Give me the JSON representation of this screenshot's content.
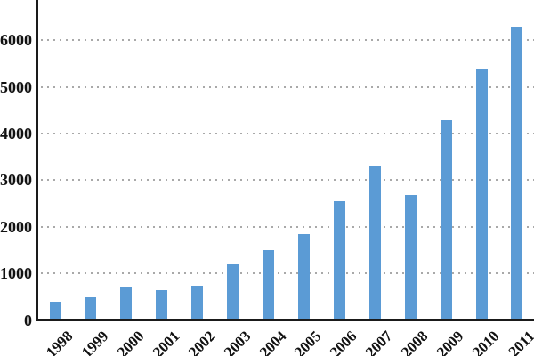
{
  "chart_data": {
    "type": "bar",
    "title": "",
    "xlabel": "",
    "ylabel": "",
    "categories": [
      "1998",
      "1999",
      "2000",
      "2001",
      "2002",
      "2003",
      "2004",
      "2005",
      "2006",
      "2007",
      "2008",
      "2009",
      "2010",
      "2011"
    ],
    "values": [
      400,
      500,
      700,
      650,
      750,
      1200,
      1500,
      1850,
      2550,
      3300,
      2700,
      4300,
      5400,
      6300
    ],
    "yticks": [
      0,
      1000,
      2000,
      3000,
      4000,
      5000,
      6000
    ],
    "ylim": [
      0,
      6900
    ],
    "grid": "horizontal-dotted",
    "legend": "none",
    "colors": {
      "bar": "#5B9BD5",
      "axis": "#1a1a1a",
      "gridline": "#a9a9a9",
      "tick_label": "#111111",
      "background": "#ffffff"
    }
  }
}
